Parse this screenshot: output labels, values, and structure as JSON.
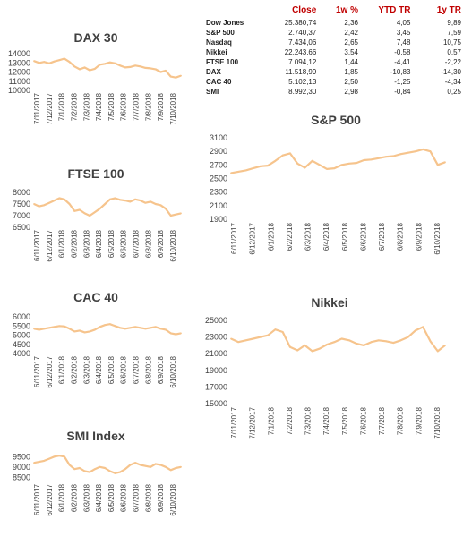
{
  "table": {
    "headers": [
      "",
      "Close",
      "1w %",
      "YTD TR",
      "1y TR"
    ],
    "rows": [
      {
        "name": "Dow Jones",
        "close": "25.380,74",
        "w1": "2,36",
        "ytd": "4,05",
        "y1": "9,89"
      },
      {
        "name": "S&P 500",
        "close": "2.740,37",
        "w1": "2,42",
        "ytd": "3,45",
        "y1": "7,59"
      },
      {
        "name": "Nasdaq",
        "close": "7.434,06",
        "w1": "2,65",
        "ytd": "7,48",
        "y1": "10,75"
      },
      {
        "name": "Nikkei",
        "close": "22.243,66",
        "w1": "3,54",
        "ytd": "-0,58",
        "y1": "0,57"
      },
      {
        "name": "FTSE 100",
        "close": "7.094,12",
        "w1": "1,44",
        "ytd": "-4,41",
        "y1": "-2,22"
      },
      {
        "name": "DAX",
        "close": "11.518,99",
        "w1": "1,85",
        "ytd": "-10,83",
        "y1": "-14,30"
      },
      {
        "name": "CAC 40",
        "close": "5.102,13",
        "w1": "2,50",
        "ytd": "-1,25",
        "y1": "-4,34"
      },
      {
        "name": "SMI",
        "close": "8.992,30",
        "w1": "2,98",
        "ytd": "-0,84",
        "y1": "0,25"
      }
    ]
  },
  "chart_data": [
    {
      "id": "dax",
      "type": "line",
      "title": "DAX 30",
      "color": "#f6c48d",
      "yticks": [
        "14000",
        "13000",
        "12000",
        "11000",
        "10000"
      ],
      "ylim": [
        10000,
        14000
      ],
      "xticks": [
        "7/11/2017",
        "7/12/2017",
        "7/1/2018",
        "7/2/2018",
        "7/3/2018",
        "7/4/2018",
        "7/5/2018",
        "7/6/2018",
        "7/7/2018",
        "7/8/2018",
        "7/9/2018",
        "7/10/2018"
      ],
      "values": [
        13200,
        13000,
        13100,
        12950,
        13150,
        13300,
        13450,
        13100,
        12600,
        12300,
        12500,
        12200,
        12350,
        12800,
        12900,
        13050,
        12950,
        12700,
        12500,
        12550,
        12700,
        12600,
        12450,
        12400,
        12300,
        12000,
        12150,
        11500,
        11400,
        11600
      ]
    },
    {
      "id": "ftse",
      "type": "line",
      "title": "FTSE 100",
      "color": "#f6c48d",
      "yticks": [
        "8000",
        "7500",
        "7000",
        "6500"
      ],
      "ylim": [
        6500,
        8000
      ],
      "xticks": [
        "6/11/2017",
        "6/12/2017",
        "6/1/2018",
        "6/2/2018",
        "6/3/2018",
        "6/4/2018",
        "6/5/2018",
        "6/6/2018",
        "6/7/2018",
        "6/8/2018",
        "6/9/2018",
        "6/10/2018"
      ],
      "values": [
        7500,
        7400,
        7450,
        7550,
        7650,
        7750,
        7700,
        7500,
        7200,
        7250,
        7100,
        7000,
        7150,
        7300,
        7500,
        7700,
        7750,
        7680,
        7650,
        7600,
        7700,
        7650,
        7550,
        7600,
        7500,
        7450,
        7300,
        7000,
        7050,
        7100
      ]
    },
    {
      "id": "cac",
      "type": "line",
      "title": "CAC 40",
      "color": "#f6c48d",
      "yticks": [
        "6000",
        "5500",
        "5000",
        "4500",
        "4000"
      ],
      "ylim": [
        4000,
        6000
      ],
      "xticks": [
        "6/11/2017",
        "6/12/2017",
        "6/1/2018",
        "6/2/2018",
        "6/3/2018",
        "6/4/2018",
        "6/5/2018",
        "6/6/2018",
        "6/7/2018",
        "6/8/2018",
        "6/9/2018",
        "6/10/2018"
      ],
      "values": [
        5350,
        5300,
        5350,
        5400,
        5450,
        5500,
        5480,
        5350,
        5200,
        5250,
        5150,
        5200,
        5300,
        5450,
        5550,
        5600,
        5500,
        5400,
        5350,
        5400,
        5450,
        5400,
        5350,
        5400,
        5450,
        5350,
        5300,
        5100,
        5050,
        5100
      ]
    },
    {
      "id": "smi",
      "type": "line",
      "title": "SMI Index",
      "color": "#f6c48d",
      "yticks": [
        "9500",
        "9000",
        "8500"
      ],
      "ylim": [
        8300,
        9600
      ],
      "xticks": [
        "6/11/2017",
        "6/12/2017",
        "6/1/2018",
        "6/2/2018",
        "6/3/2018",
        "6/4/2018",
        "6/5/2018",
        "6/6/2018",
        "6/7/2018",
        "6/8/2018",
        "6/9/2018",
        "6/10/2018"
      ],
      "values": [
        9200,
        9250,
        9300,
        9400,
        9500,
        9550,
        9500,
        9100,
        8900,
        8950,
        8800,
        8750,
        8900,
        9000,
        8950,
        8800,
        8700,
        8750,
        8900,
        9100,
        9200,
        9100,
        9050,
        9000,
        9150,
        9100,
        9000,
        8850,
        8950,
        9000
      ]
    },
    {
      "id": "sp",
      "type": "line",
      "title": "S&P 500",
      "color": "#f6c48d",
      "yticks": [
        "3100",
        "2900",
        "2700",
        "2500",
        "2300",
        "2100",
        "1900"
      ],
      "ylim": [
        1900,
        3100
      ],
      "xticks": [
        "6/11/2017",
        "6/12/2017",
        "6/1/2018",
        "6/2/2018",
        "6/3/2018",
        "6/4/2018",
        "6/5/2018",
        "6/6/2018",
        "6/7/2018",
        "6/8/2018",
        "6/9/2018",
        "6/10/2018"
      ],
      "values": [
        2580,
        2600,
        2620,
        2650,
        2680,
        2690,
        2760,
        2840,
        2870,
        2720,
        2660,
        2760,
        2700,
        2640,
        2650,
        2700,
        2720,
        2730,
        2770,
        2780,
        2800,
        2820,
        2830,
        2860,
        2880,
        2900,
        2930,
        2900,
        2700,
        2740
      ]
    },
    {
      "id": "nikkei",
      "type": "line",
      "title": "Nikkei",
      "color": "#f6c48d",
      "yticks": [
        "25000",
        "23000",
        "21000",
        "19000",
        "17000",
        "15000"
      ],
      "ylim": [
        15000,
        25000
      ],
      "xticks": [
        "7/11/2017",
        "7/12/2017",
        "7/1/2018",
        "7/2/2018",
        "7/3/2018",
        "7/4/2018",
        "7/5/2018",
        "7/6/2018",
        "7/7/2018",
        "7/8/2018",
        "7/9/2018",
        "7/10/2018"
      ],
      "values": [
        22800,
        22400,
        22600,
        22800,
        23000,
        23200,
        23900,
        23600,
        21800,
        21400,
        22000,
        21300,
        21600,
        22100,
        22400,
        22800,
        22600,
        22200,
        22000,
        22400,
        22600,
        22500,
        22300,
        22600,
        23000,
        23800,
        24200,
        22500,
        21300,
        22000
      ]
    }
  ]
}
